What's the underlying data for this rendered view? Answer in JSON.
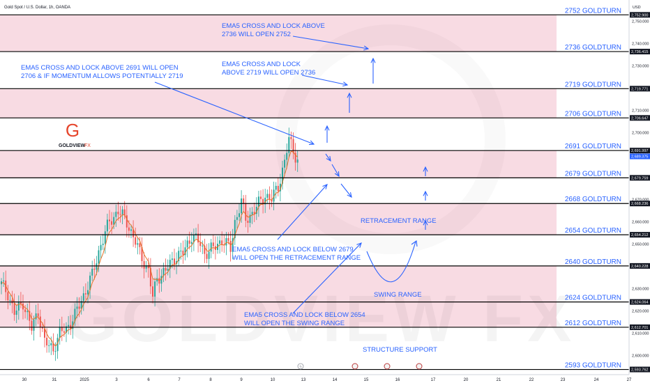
{
  "header": {
    "symbol": "Gold Spot / U.S. Dollar, 1h, OANDA"
  },
  "logo": {
    "brand": "GOLDVIEW",
    "suffix": "FX"
  },
  "watermark": "GOLDVIEW FX",
  "currency": "USD",
  "colors": {
    "accent": "#2962ff",
    "zone": "#f8dbe3",
    "bull": "#26a69a",
    "bear": "#ef5350",
    "ema": "#e57327",
    "level_line": "#000000",
    "current_price_badge": "#2962ff"
  },
  "chart_data": {
    "type": "candlestick",
    "instrument": "XAUUSD",
    "timeframe": "1h",
    "ylim": [
      2590,
      2755
    ],
    "grid": false,
    "x_tick_labels": [
      "30",
      "31",
      "2025",
      "3",
      "6",
      "7",
      "8",
      "9",
      "10",
      "13",
      "14",
      "15",
      "16",
      "17",
      "20",
      "21",
      "22",
      "23",
      "24",
      "27"
    ],
    "y_tick_values": [
      2600,
      2610,
      2620,
      2630,
      2640,
      2650,
      2660,
      2670,
      2680,
      2690,
      2700,
      2710,
      2720,
      2730,
      2740,
      2750
    ],
    "y_tick_labels": [
      "2,600.000",
      "2,610.000",
      "2,620.000",
      "2,630.000",
      "2,640.000",
      "2,650.000",
      "2,660.000",
      "2,670.000",
      "2,680.000",
      "2,690.000",
      "2,700.000",
      "2,710.000",
      "2,720.000",
      "2,730.000",
      "2,740.000",
      "2,750.000"
    ],
    "current_price": 2689.375,
    "current_price_label": "2,689.375",
    "levels": [
      {
        "value": 2752.9,
        "axis_label": "2,752.900",
        "name": "2752 GOLDTURN"
      },
      {
        "value": 2736.415,
        "axis_label": "2,736.415",
        "name": "2736 GOLDTURN"
      },
      {
        "value": 2719.771,
        "axis_label": "2,719.771",
        "name": "2719 GOLDTURN"
      },
      {
        "value": 2706.647,
        "axis_label": "2,706.647",
        "name": "2706 GOLDTURN"
      },
      {
        "value": 2691.997,
        "axis_label": "2,691.997",
        "name": "2691 GOLDTURN"
      },
      {
        "value": 2679.759,
        "axis_label": "2,679.759",
        "name": "2679 GOLDTURN"
      },
      {
        "value": 2668.236,
        "axis_label": "2,668.236",
        "name": "2668 GOLDTURN"
      },
      {
        "value": 2654.212,
        "axis_label": "2,654.212",
        "name": "2654 GOLDTURN"
      },
      {
        "value": 2640.228,
        "axis_label": "2,640.228",
        "name": "2640 GOLDTURN"
      },
      {
        "value": 2624.064,
        "axis_label": "2,624.064",
        "name": "2624 GOLDTURN"
      },
      {
        "value": 2612.701,
        "axis_label": "2,612.701",
        "name": "2612 GOLDTURN"
      },
      {
        "value": 2593.762,
        "axis_label": "2,593.762",
        "name": "2593 GOLDTURN"
      }
    ],
    "zones": [
      {
        "from": 2736.415,
        "to": 2752.9
      },
      {
        "from": 2706.647,
        "to": 2719.771
      },
      {
        "from": 2679.759,
        "to": 2691.997
      },
      {
        "from": 2654.212,
        "to": 2668.236
      },
      {
        "from": 2612.701,
        "to": 2640.228
      }
    ],
    "price_path": [
      [
        0,
        2632
      ],
      [
        3,
        2628
      ],
      [
        6,
        2619
      ],
      [
        10,
        2624
      ],
      [
        14,
        2612
      ],
      [
        17,
        2620
      ],
      [
        20,
        2606
      ],
      [
        24,
        2603
      ],
      [
        27,
        2610
      ],
      [
        30,
        2612
      ],
      [
        34,
        2618
      ],
      [
        38,
        2627
      ],
      [
        42,
        2636
      ],
      [
        46,
        2650
      ],
      [
        50,
        2660
      ],
      [
        54,
        2665
      ],
      [
        58,
        2660
      ],
      [
        62,
        2651
      ],
      [
        64,
        2646
      ],
      [
        68,
        2638
      ],
      [
        70,
        2626
      ],
      [
        72,
        2635
      ],
      [
        76,
        2638
      ],
      [
        80,
        2644
      ],
      [
        84,
        2646
      ],
      [
        88,
        2654
      ],
      [
        92,
        2650
      ],
      [
        94,
        2646
      ],
      [
        98,
        2648
      ],
      [
        102,
        2652
      ],
      [
        106,
        2648
      ],
      [
        108,
        2660
      ],
      [
        111,
        2669
      ],
      [
        113,
        2661
      ],
      [
        116,
        2664
      ],
      [
        119,
        2668
      ],
      [
        122,
        2672
      ],
      [
        125,
        2670
      ],
      [
        128,
        2676
      ],
      [
        131,
        2687
      ],
      [
        133,
        2697
      ],
      [
        135,
        2692
      ],
      [
        137,
        2688
      ]
    ],
    "annotations": {
      "top_left": [
        "EMA5 CROSS AND LOCK ABOVE 2691 WILL OPEN",
        "2706 & IF MOMENTUM ALLOWS POTENTIALLY 2719"
      ],
      "upper_1": [
        "EMA5 CROSS AND LOCK ABOVE",
        "2736 WILL OPEN 2752"
      ],
      "upper_2": [
        "EMA5 CROSS AND LOCK",
        "ABOVE 2719 WILL OPEN 2736"
      ],
      "mid": [
        "EMA5 CROSS AND LOCK BELOW 2679",
        "WILL OPEN THE RETRACEMENT RANGE"
      ],
      "low": [
        "EMA5 CROSS AND LOCK BELOW 2654",
        "WILL OPEN THE SWING RANGE"
      ],
      "retracement": "RETRACEMENT RANGE",
      "swing": "SWING RANGE",
      "structure": "STRUCTURE SUPPORT"
    }
  }
}
